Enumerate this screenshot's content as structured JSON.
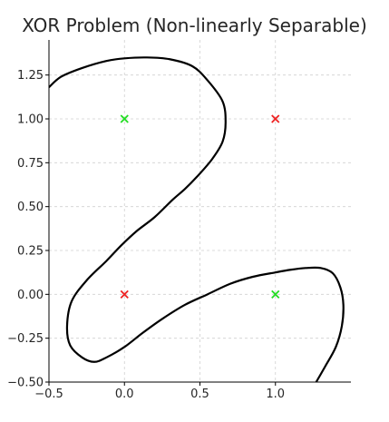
{
  "chart_data": {
    "type": "scatter",
    "title": "XOR Problem (Non-linearly Separable)",
    "xlabel": "",
    "ylabel": "",
    "xlim": [
      -0.5,
      1.5
    ],
    "ylim": [
      -0.5,
      1.45
    ],
    "xticks": [
      -0.5,
      0.0,
      0.5,
      1.0
    ],
    "xtick_labels": [
      "−0.5",
      "0.0",
      "0.5",
      "1.0"
    ],
    "yticks": [
      -0.5,
      -0.25,
      0.0,
      0.25,
      0.5,
      0.75,
      1.0,
      1.25
    ],
    "ytick_labels": [
      "−0.50",
      "−0.25",
      "0.00",
      "0.25",
      "0.50",
      "0.75",
      "1.00",
      "1.25"
    ],
    "grid": true,
    "series": [
      {
        "marker": "x",
        "color": "#22dd22",
        "points": [
          [
            0,
            1
          ],
          [
            1,
            0
          ]
        ]
      },
      {
        "marker": "x",
        "color": "#ee2222",
        "points": [
          [
            0,
            0
          ],
          [
            1,
            1
          ]
        ]
      }
    ],
    "decision_boundary": {
      "color": "#000000",
      "points": [
        [
          -0.5,
          1.18
        ],
        [
          -0.42,
          1.24
        ],
        [
          -0.28,
          1.29
        ],
        [
          -0.12,
          1.33
        ],
        [
          0.0,
          1.345
        ],
        [
          0.15,
          1.35
        ],
        [
          0.3,
          1.34
        ],
        [
          0.45,
          1.3
        ],
        [
          0.55,
          1.22
        ],
        [
          0.65,
          1.1
        ],
        [
          0.67,
          0.98
        ],
        [
          0.65,
          0.87
        ],
        [
          0.58,
          0.77
        ],
        [
          0.48,
          0.67
        ],
        [
          0.4,
          0.6
        ],
        [
          0.32,
          0.54
        ],
        [
          0.2,
          0.44
        ],
        [
          0.08,
          0.36
        ],
        [
          -0.02,
          0.28
        ],
        [
          -0.12,
          0.19
        ],
        [
          -0.25,
          0.08
        ],
        [
          -0.35,
          -0.04
        ],
        [
          -0.38,
          -0.18
        ],
        [
          -0.36,
          -0.29
        ],
        [
          -0.28,
          -0.36
        ],
        [
          -0.2,
          -0.385
        ],
        [
          -0.12,
          -0.36
        ],
        [
          0.0,
          -0.3
        ],
        [
          0.12,
          -0.22
        ],
        [
          0.25,
          -0.14
        ],
        [
          0.4,
          -0.06
        ],
        [
          0.55,
          0.0
        ],
        [
          0.7,
          0.06
        ],
        [
          0.85,
          0.1
        ],
        [
          1.0,
          0.125
        ],
        [
          1.1,
          0.14
        ],
        [
          1.2,
          0.15
        ],
        [
          1.3,
          0.15
        ],
        [
          1.38,
          0.12
        ],
        [
          1.43,
          0.04
        ],
        [
          1.45,
          -0.06
        ],
        [
          1.44,
          -0.18
        ],
        [
          1.4,
          -0.3
        ],
        [
          1.33,
          -0.41
        ],
        [
          1.27,
          -0.5
        ]
      ]
    }
  }
}
